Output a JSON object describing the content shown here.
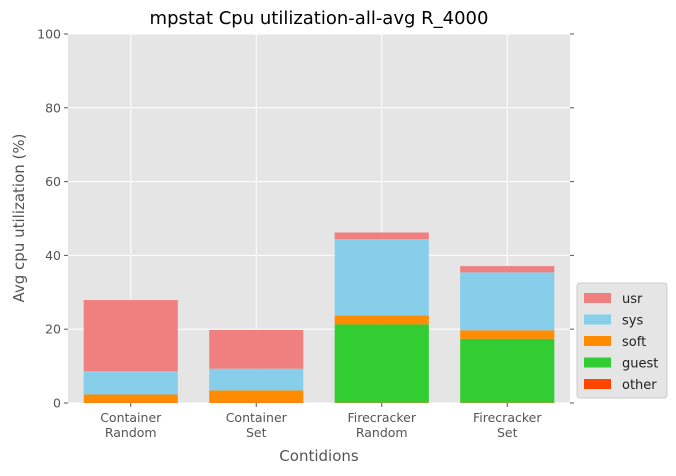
{
  "chart_data": {
    "type": "bar",
    "stacked": true,
    "title": "mpstat Cpu utilization-all-avg R_4000",
    "xlabel": "Contidions",
    "ylabel": "Avg cpu utilization (%)",
    "ylim": [
      0,
      100
    ],
    "yticks": [
      0,
      20,
      40,
      60,
      80,
      100
    ],
    "grid": true,
    "legend_position": "right, bottom",
    "categories": [
      [
        "Container",
        "Random"
      ],
      [
        "Container",
        "Set"
      ],
      [
        "Firecracker",
        "Random"
      ],
      [
        "Firecracker",
        "Set"
      ]
    ],
    "series": [
      {
        "name": "usr",
        "color": "#f08080",
        "values": [
          19.3,
          10.5,
          1.8,
          1.7
        ]
      },
      {
        "name": "sys",
        "color": "#87ceeb",
        "values": [
          6.3,
          5.9,
          20.7,
          15.7
        ]
      },
      {
        "name": "soft",
        "color": "#ff8c00",
        "values": [
          2.2,
          3.3,
          2.4,
          2.3
        ]
      },
      {
        "name": "guest",
        "color": "#32cd32",
        "values": [
          0,
          0,
          21.2,
          17.3
        ]
      },
      {
        "name": "other",
        "color": "#ff4500",
        "values": [
          0.1,
          0.1,
          0.1,
          0.1
        ]
      }
    ],
    "stack_order_bottom_to_top": [
      "other",
      "guest",
      "soft",
      "sys",
      "usr"
    ]
  }
}
